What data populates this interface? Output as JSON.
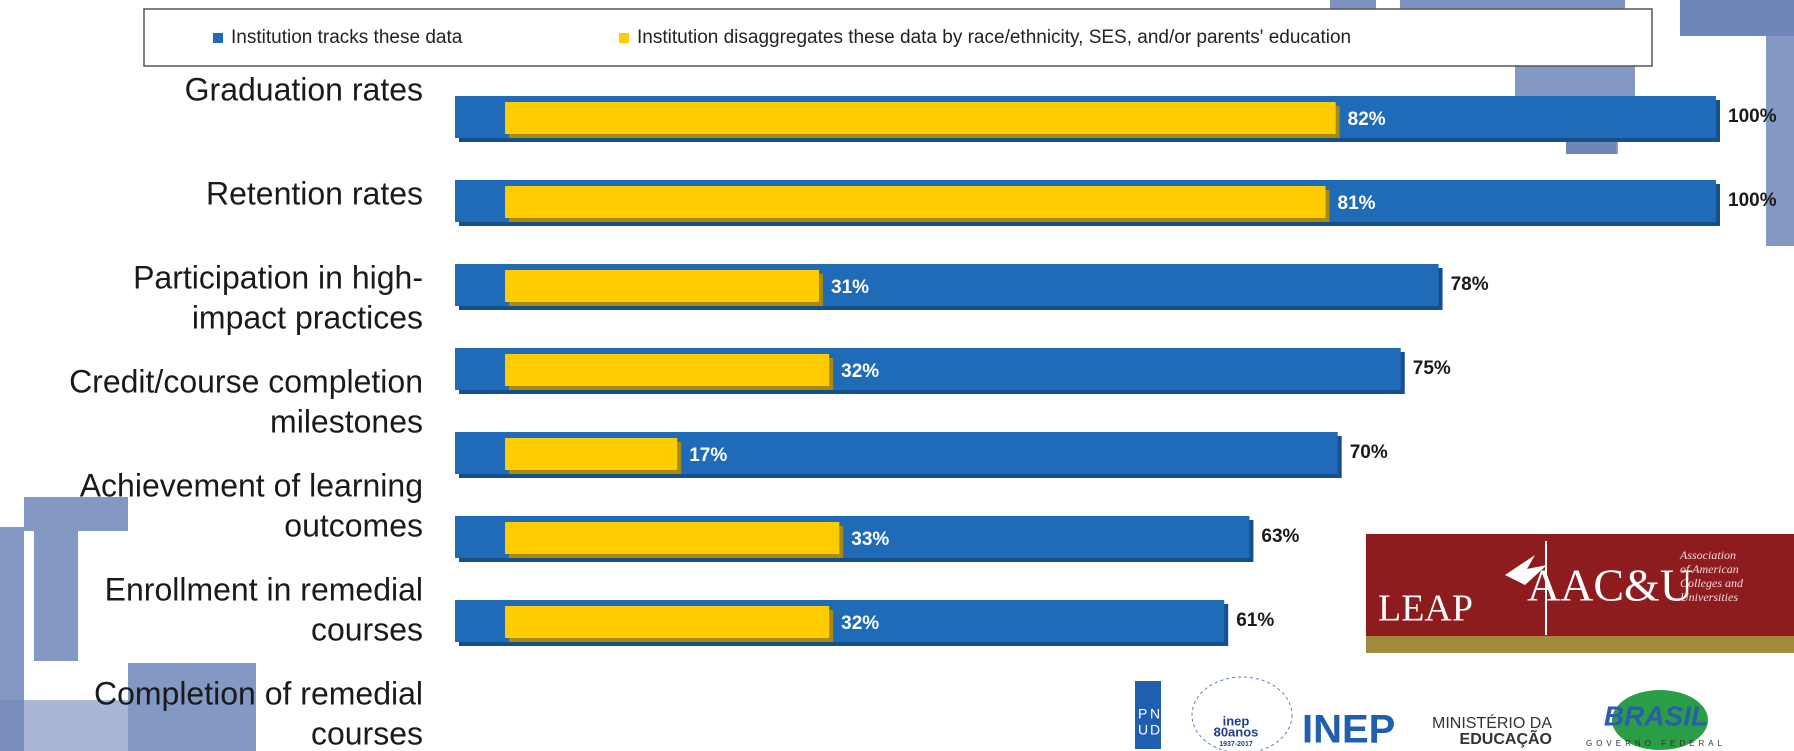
{
  "chart_data": {
    "type": "hbar",
    "categories": [
      [
        "Graduation rates"
      ],
      [
        "Retention rates"
      ],
      [
        "Participation in high-",
        "impact practices"
      ],
      [
        "Credit/course completion",
        "milestones"
      ],
      [
        "Achievement of learning",
        "outcomes"
      ],
      [
        "Enrollment in remedial",
        "courses"
      ],
      [
        "Completion of remedial",
        "courses"
      ]
    ],
    "series": [
      {
        "name": "Institution tracks these data",
        "color": "#1f6bb8",
        "values": [
          100,
          100,
          78,
          75,
          70,
          63,
          61
        ],
        "value_labels": [
          "100%",
          "100%",
          "78%",
          "75%",
          "70%",
          "63%",
          "61%"
        ]
      },
      {
        "name": "Institution disaggregates these data by race/ethnicity, SES, and/or parents' education",
        "color": "#ffcc00",
        "values": [
          82,
          81,
          31,
          32,
          17,
          33,
          32
        ],
        "value_labels": [
          "82%",
          "81%",
          "31%",
          "32%",
          "17%",
          "33%",
          "32%"
        ]
      }
    ],
    "xlim": [
      0,
      100
    ],
    "legend": "top"
  },
  "logos": {
    "leap": "LEAP",
    "aacu_mark": "AAC&U",
    "aacu_name": [
      "Association",
      "of American",
      "Colleges and",
      "Universities"
    ],
    "pnud": [
      "P",
      "N",
      "U",
      "D"
    ],
    "inep_anos": [
      "inep",
      "80anos",
      "1937-2017"
    ],
    "inep": "INEP",
    "ministerio": [
      "MINISTÉRIO DA",
      "EDUCAÇÃO"
    ],
    "brasil": "BRASIL",
    "governo": "GOVERNO FEDERAL"
  }
}
